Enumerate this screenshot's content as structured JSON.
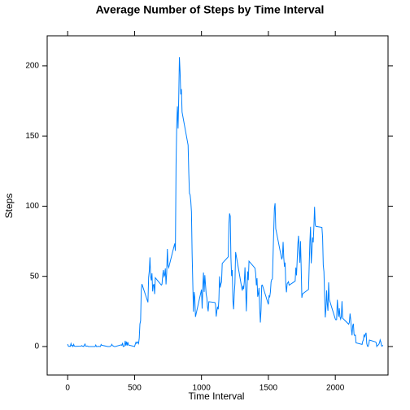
{
  "chart_data": {
    "type": "line",
    "title": "Average Number of Steps by Time Interval",
    "xlabel": "Time Interval",
    "ylabel": "Steps",
    "color": "#0080ff",
    "x": [
      0,
      5,
      10,
      15,
      20,
      25,
      30,
      35,
      40,
      45,
      50,
      55,
      100,
      105,
      110,
      115,
      120,
      125,
      130,
      135,
      140,
      145,
      150,
      155,
      200,
      205,
      210,
      215,
      220,
      225,
      230,
      235,
      240,
      245,
      250,
      255,
      300,
      305,
      310,
      315,
      320,
      325,
      330,
      335,
      340,
      345,
      350,
      355,
      400,
      405,
      410,
      415,
      420,
      425,
      430,
      435,
      440,
      445,
      450,
      455,
      500,
      505,
      510,
      515,
      520,
      525,
      530,
      535,
      540,
      545,
      550,
      555,
      600,
      605,
      610,
      615,
      620,
      625,
      630,
      635,
      640,
      645,
      650,
      655,
      700,
      705,
      710,
      715,
      720,
      725,
      730,
      735,
      740,
      745,
      750,
      755,
      800,
      805,
      810,
      815,
      820,
      825,
      830,
      835,
      840,
      845,
      850,
      855,
      900,
      905,
      910,
      915,
      920,
      925,
      930,
      935,
      940,
      945,
      950,
      955,
      1000,
      1005,
      1010,
      1015,
      1020,
      1025,
      1030,
      1035,
      1040,
      1045,
      1050,
      1055,
      1100,
      1105,
      1110,
      1115,
      1120,
      1125,
      1130,
      1135,
      1140,
      1145,
      1150,
      1155,
      1200,
      1205,
      1210,
      1215,
      1220,
      1225,
      1230,
      1235,
      1240,
      1245,
      1250,
      1255,
      1300,
      1305,
      1310,
      1315,
      1320,
      1325,
      1330,
      1335,
      1340,
      1345,
      1350,
      1355,
      1400,
      1405,
      1410,
      1415,
      1420,
      1425,
      1430,
      1435,
      1440,
      1445,
      1450,
      1455,
      1500,
      1505,
      1510,
      1515,
      1520,
      1525,
      1530,
      1535,
      1540,
      1545,
      1550,
      1555,
      1600,
      1605,
      1610,
      1615,
      1620,
      1625,
      1630,
      1635,
      1640,
      1645,
      1650,
      1655,
      1700,
      1705,
      1710,
      1715,
      1720,
      1725,
      1730,
      1735,
      1740,
      1745,
      1750,
      1755,
      1800,
      1805,
      1810,
      1815,
      1820,
      1825,
      1830,
      1835,
      1840,
      1845,
      1850,
      1855,
      1900,
      1905,
      1910,
      1915,
      1920,
      1925,
      1930,
      1935,
      1940,
      1945,
      1950,
      1955,
      2000,
      2005,
      2010,
      2015,
      2020,
      2025,
      2030,
      2035,
      2040,
      2045,
      2050,
      2055,
      2100,
      2105,
      2110,
      2115,
      2120,
      2125,
      2130,
      2135,
      2140,
      2145,
      2150,
      2155,
      2200,
      2205,
      2210,
      2215,
      2220,
      2225,
      2230,
      2235,
      2240,
      2245,
      2250,
      2255,
      2300,
      2305,
      2310,
      2315,
      2320,
      2325,
      2330,
      2335,
      2340,
      2345,
      2350,
      2355
    ],
    "values": [
      1.7,
      0.3,
      0.1,
      0.2,
      0.1,
      2.1,
      0.5,
      0.9,
      0,
      1.5,
      0.3,
      0.1,
      0.3,
      0.7,
      0.2,
      0.3,
      0,
      1.1,
      1.8,
      0.2,
      0.2,
      0.4,
      0.3,
      0,
      0,
      0,
      1.1,
      0,
      0,
      0.1,
      0,
      0.2,
      0,
      0,
      1.5,
      0.9,
      0,
      0,
      0,
      0,
      0.2,
      0.6,
      1.6,
      0.6,
      0.5,
      0.1,
      0,
      0,
      1.2,
      0.9,
      2.6,
      0,
      0.3,
      0.4,
      4.1,
      0.7,
      3.5,
      0.8,
      3.1,
      1.1,
      0,
      1.6,
      3,
      2.2,
      3.3,
      3,
      2.1,
      6.1,
      16,
      18.3,
      39.5,
      44.5,
      31.5,
      49.3,
      53.8,
      63.5,
      50,
      47.1,
      52.2,
      39.3,
      44,
      44.2,
      37.4,
      49,
      43.8,
      44.4,
      50.5,
      54.5,
      49.9,
      51,
      55.7,
      44.3,
      52.3,
      69.5,
      57.8,
      56.2,
      73.4,
      68.2,
      129.4,
      157.5,
      171.2,
      155.4,
      177.3,
      206.2,
      195.9,
      179.6,
      183.4,
      167,
      143.5,
      124,
      109.1,
      108.1,
      103.7,
      96,
      66.2,
      45.2,
      24.8,
      38.8,
      35,
      21.1,
      40.6,
      27,
      42.4,
      52.7,
      38.9,
      50.8,
      44.3,
      37.4,
      34.7,
      28.3,
      25.1,
      31.9,
      31.4,
      29.7,
      21.3,
      25.5,
      28.4,
      26.5,
      33.4,
      50,
      42,
      44.6,
      46,
      59.2,
      63.9,
      87.7,
      94.8,
      92.8,
      63.4,
      50.2,
      54.5,
      32.4,
      26.5,
      37.7,
      45.1,
      67.3,
      42.3,
      39.9,
      43.3,
      41,
      46.2,
      56.4,
      42.8,
      25.1,
      40,
      53.5,
      47.3,
      60.8,
      55.8,
      52,
      43.6,
      48.7,
      35.5,
      37.5,
      41.8,
      27.5,
      17.1,
      26.1,
      43.6,
      43.8,
      30,
      36.1,
      35.5,
      38.8,
      46,
      47.8,
      48.1,
      65.3,
      82.9,
      98.7,
      102.1,
      84,
      62.1,
      64.1,
      74.5,
      63.2,
      56.9,
      59.8,
      43.9,
      38.6,
      44.7,
      45.5,
      46.2,
      43.7,
      46.6,
      56.3,
      50.7,
      61.2,
      72.7,
      78.9,
      68.9,
      59.7,
      75.1,
      56.5,
      34.8,
      37.5,
      40.7,
      58,
      74.7,
      85.3,
      59.3,
      67.8,
      77.7,
      74.2,
      85.3,
      99.5,
      86.6,
      85.6,
      84.9,
      77.8,
      58,
      53.4,
      36.3,
      20.7,
      27.4,
      40,
      30.2,
      25.5,
      45.7,
      33.5,
      19.6,
      19,
      19.3,
      33.3,
      26.8,
      21.2,
      27.3,
      21.3,
      19.5,
      21.3,
      32.3,
      20.2,
      15.9,
      17.2,
      23.5,
      19.2,
      12.5,
      8,
      14.7,
      16.3,
      8.7,
      7.8,
      8.1,
      2.6,
      1.5,
      3.7,
      4.8,
      8.5,
      7.1,
      8.7,
      9.8,
      2.2,
      0.3,
      0.1,
      1.6,
      4.6,
      3.3,
      2.8,
      0,
      0.8,
      1,
      1.6,
      2.6,
      4.7,
      3.3,
      0.6,
      0.2,
      1.1
    ],
    "xlim": [
      -153,
      2394
    ],
    "xticks": [
      0,
      500,
      1000,
      1500,
      2000
    ],
    "ylim": [
      -20.3,
      221.4
    ],
    "yticks": [
      0,
      50,
      100,
      150,
      200
    ]
  }
}
